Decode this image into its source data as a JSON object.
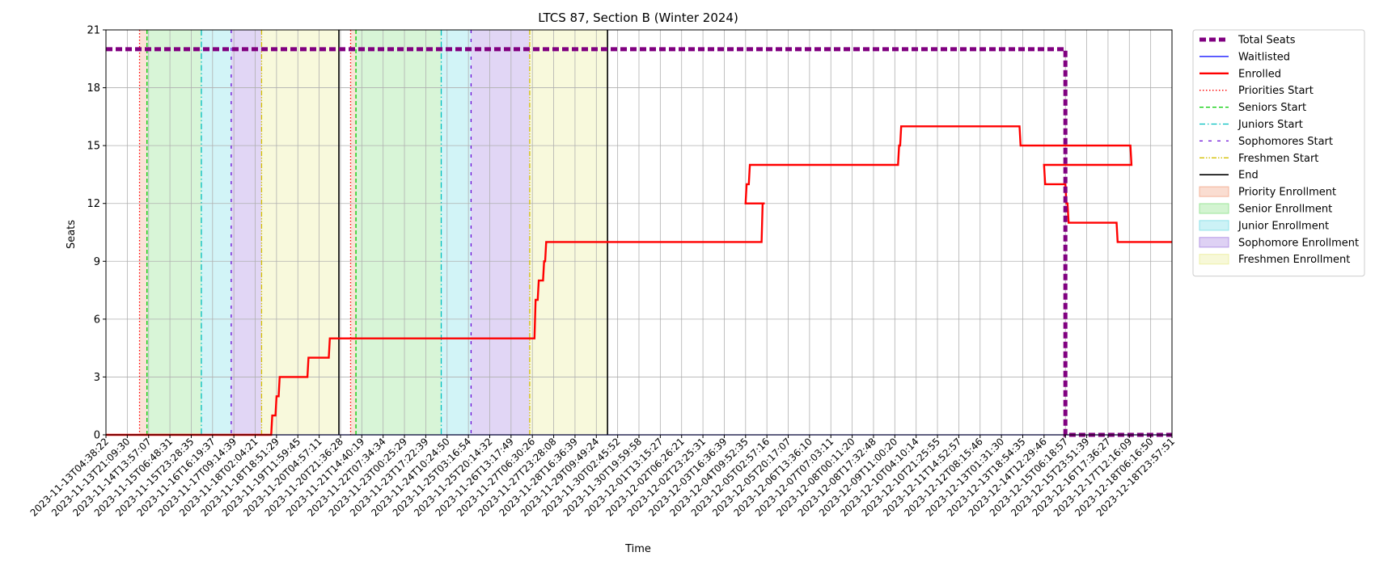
{
  "chart_data": {
    "type": "line",
    "title": "LTCS 87, Section B (Winter 2024)",
    "xlabel": "Time",
    "ylabel": "Seats",
    "ylim": [
      0,
      21
    ],
    "xlim": [
      0,
      1
    ],
    "yticks": [
      0,
      3,
      6,
      9,
      12,
      15,
      18,
      21
    ],
    "grid": true,
    "legend_placement": "outside-right-top",
    "x_ticks": [
      "2023-11-13T04:38:22",
      "2023-11-13T21:09:30",
      "2023-11-14T13:57:07",
      "2023-11-15T06:48:31",
      "2023-11-15T23:28:35",
      "2023-11-16T16:19:37",
      "2023-11-17T09:14:39",
      "2023-11-18T02:04:21",
      "2023-11-18T18:51:29",
      "2023-11-19T11:59:45",
      "2023-11-20T04:57:11",
      "2023-11-20T21:36:28",
      "2023-11-21T14:40:19",
      "2023-11-22T07:34:34",
      "2023-11-23T00:25:29",
      "2023-11-23T17:22:39",
      "2023-11-24T10:24:50",
      "2023-11-25T03:16:54",
      "2023-11-25T20:14:32",
      "2023-11-26T13:17:49",
      "2023-11-27T06:30:26",
      "2023-11-27T23:28:08",
      "2023-11-28T16:36:39",
      "2023-11-29T09:49:24",
      "2023-11-30T02:45:52",
      "2023-11-30T19:59:58",
      "2023-12-01T13:15:27",
      "2023-12-02T06:26:21",
      "2023-12-02T23:25:31",
      "2023-12-03T16:36:39",
      "2023-12-04T09:52:35",
      "2023-12-05T02:57:16",
      "2023-12-05T20:17:07",
      "2023-12-06T13:36:10",
      "2023-12-07T07:03:11",
      "2023-12-08T00:11:20",
      "2023-12-08T17:32:48",
      "2023-12-09T11:00:20",
      "2023-12-10T04:10:14",
      "2023-12-10T21:25:55",
      "2023-12-11T14:52:57",
      "2023-12-12T08:15:46",
      "2023-12-13T01:31:30",
      "2023-12-13T18:54:35",
      "2023-12-14T12:29:46",
      "2023-12-15T06:18:57",
      "2023-12-15T23:51:39",
      "2023-12-16T17:36:27",
      "2023-12-17T12:16:09",
      "2023-12-18T06:16:50",
      "2023-12-18T23:57:51"
    ],
    "legend": [
      {
        "label": "Total Seats",
        "kind": "line",
        "color": "#800080",
        "dash": "8,4",
        "width": 5
      },
      {
        "label": "Waitlisted",
        "kind": "line",
        "color": "#0000ff",
        "dash": "",
        "width": 1.2
      },
      {
        "label": "Enrolled",
        "kind": "line",
        "color": "#ff0000",
        "dash": "",
        "width": 2.4
      },
      {
        "label": "Priorities Start",
        "kind": "line",
        "color": "#ff0000",
        "dash": "1.5,2.5",
        "width": 1.3
      },
      {
        "label": "Seniors Start",
        "kind": "line",
        "color": "#00cc00",
        "dash": "5,3",
        "width": 1.3
      },
      {
        "label": "Juniors Start",
        "kind": "line",
        "color": "#00bfbf",
        "dash": "7,3,1.5,3",
        "width": 1.3
      },
      {
        "label": "Sophomores Start",
        "kind": "line",
        "color": "#6a0dd8",
        "dash": "4,7",
        "width": 1.3
      },
      {
        "label": "Freshmen Start",
        "kind": "line",
        "color": "#d4c000",
        "dash": "6,2,1.5,2,1.5,2",
        "width": 1.3
      },
      {
        "label": "End",
        "kind": "line",
        "color": "#000000",
        "dash": "",
        "width": 1.6
      },
      {
        "label": "Priority Enrollment",
        "kind": "patch",
        "color": "#f4b49a"
      },
      {
        "label": "Senior Enrollment",
        "kind": "patch",
        "color": "#9ee69a"
      },
      {
        "label": "Junior Enrollment",
        "kind": "patch",
        "color": "#8fe3ea"
      },
      {
        "label": "Sophomore Enrollment",
        "kind": "patch",
        "color": "#b598e6"
      },
      {
        "label": "Freshmen Enrollment",
        "kind": "patch",
        "color": "#eef0a8"
      }
    ],
    "phases": [
      {
        "name": "Priority Enrollment",
        "color": "#f4b49a",
        "x0": 0.0315,
        "x1": 0.0385
      },
      {
        "name": "Senior Enrollment",
        "color": "#9ee69a",
        "x0": 0.0385,
        "x1": 0.0895
      },
      {
        "name": "Junior Enrollment",
        "color": "#8fe3ea",
        "x0": 0.0895,
        "x1": 0.1175
      },
      {
        "name": "Sophomore Enrollment",
        "color": "#b598e6",
        "x0": 0.1175,
        "x1": 0.146
      },
      {
        "name": "Freshmen Enrollment",
        "color": "#eef0a8",
        "x0": 0.146,
        "x1": 0.2185
      },
      {
        "name": "Priority Enrollment",
        "color": "#f4b49a",
        "x0": 0.2295,
        "x1": 0.2345
      },
      {
        "name": "Senior Enrollment",
        "color": "#9ee69a",
        "x0": 0.2345,
        "x1": 0.3145
      },
      {
        "name": "Junior Enrollment",
        "color": "#8fe3ea",
        "x0": 0.3145,
        "x1": 0.3425
      },
      {
        "name": "Sophomore Enrollment",
        "color": "#b598e6",
        "x0": 0.3425,
        "x1": 0.3975
      },
      {
        "name": "Freshmen Enrollment",
        "color": "#eef0a8",
        "x0": 0.3975,
        "x1": 0.4705
      }
    ],
    "markers": [
      {
        "series": "Priorities Start",
        "x": 0.0315
      },
      {
        "series": "Seniors Start",
        "x": 0.0385
      },
      {
        "series": "Juniors Start",
        "x": 0.0895
      },
      {
        "series": "Sophomores Start",
        "x": 0.1175
      },
      {
        "series": "Freshmen Start",
        "x": 0.146
      },
      {
        "series": "End",
        "x": 0.2185
      },
      {
        "series": "Priorities Start",
        "x": 0.2295
      },
      {
        "series": "Seniors Start",
        "x": 0.2345
      },
      {
        "series": "Juniors Start",
        "x": 0.3145
      },
      {
        "series": "Sophomores Start",
        "x": 0.3425
      },
      {
        "series": "Freshmen Start",
        "x": 0.3975
      },
      {
        "series": "End",
        "x": 0.4705
      }
    ],
    "series": [
      {
        "name": "Total Seats",
        "x": [
          0,
          0.9,
          0.9,
          1.0
        ],
        "y": [
          20,
          20,
          0,
          0
        ]
      },
      {
        "name": "Waitlisted",
        "x": [
          0,
          1.0
        ],
        "y": [
          0,
          0
        ]
      },
      {
        "name": "Enrolled",
        "x": [
          0,
          0.155,
          0.156,
          0.159,
          0.16,
          0.162,
          0.163,
          0.189,
          0.19,
          0.209,
          0.21,
          0.402,
          0.403,
          0.405,
          0.406,
          0.41,
          0.411,
          0.412,
          0.413,
          0.615,
          0.616,
          0.617,
          0.618,
          0.6,
          0.601,
          0.603,
          0.604,
          0.743,
          0.744,
          0.745,
          0.746,
          0.857,
          0.858,
          0.961,
          0.962,
          0.88,
          0.881,
          0.9,
          0.901,
          0.902,
          0.903,
          0.948,
          0.949,
          1.0
        ],
        "y": [
          0,
          0,
          1,
          1,
          2,
          2,
          3,
          3,
          4,
          4,
          5,
          5,
          7,
          7,
          8,
          8,
          9,
          9,
          10,
          10,
          12,
          12,
          12,
          12,
          13,
          13,
          14,
          14,
          15,
          15,
          16,
          16,
          15,
          15,
          14,
          14,
          13,
          13,
          12,
          12,
          11,
          11,
          10,
          10
        ]
      }
    ]
  }
}
